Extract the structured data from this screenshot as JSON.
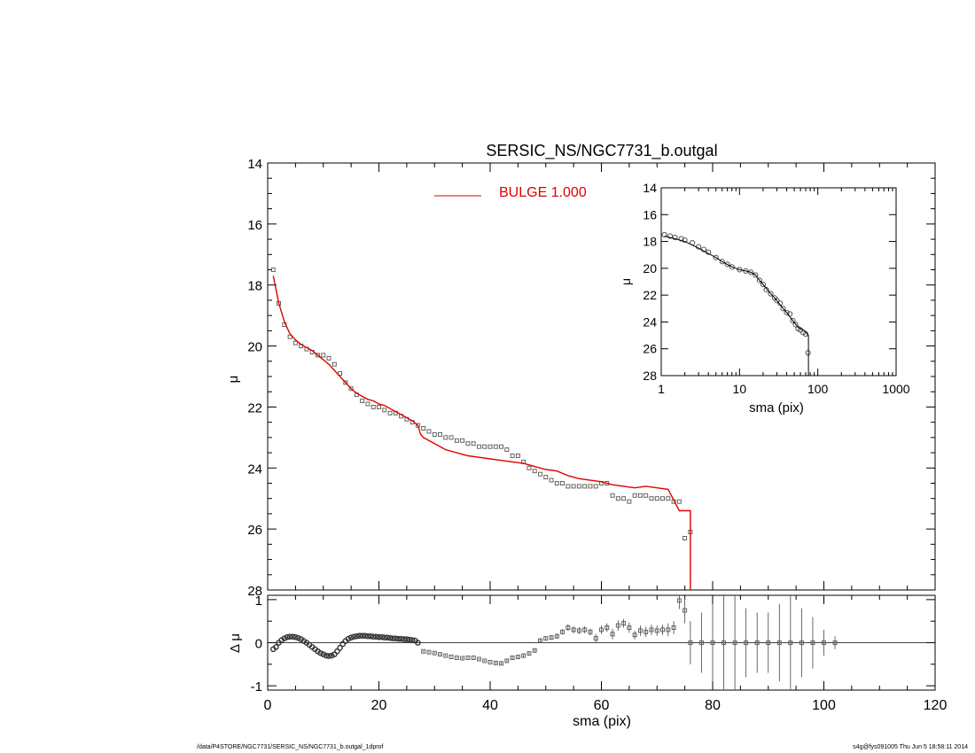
{
  "footer": {
    "left": "/data/P4STORE/NGC7731/SERSIC_NS/NGC7731_b.outgal_1dprof",
    "right": "s4g@fys091005  Thu Jun  5 18:58:11 2014"
  },
  "chart_data": [
    {
      "panel": "main",
      "type": "scatter",
      "title": "SERSIC_NS/NGC7731_b.outgal",
      "xlabel": "",
      "ylabel": "μ",
      "xlim": [
        0,
        120
      ],
      "ylim": [
        28,
        14
      ],
      "x_ticks": [],
      "y_ticks": [
        "14",
        "16",
        "18",
        "20",
        "22",
        "24",
        "26",
        "28"
      ],
      "legend": {
        "placement": "top-center",
        "entries": [
          {
            "label": "BULGE  1.000",
            "color": "#e00000"
          }
        ]
      },
      "series": [
        {
          "style": "squares",
          "color": "#555555",
          "x": [
            1,
            2,
            3,
            4,
            5,
            6,
            7,
            8,
            9,
            10,
            11,
            12,
            13,
            14,
            15,
            16,
            17,
            18,
            19,
            20,
            21,
            22,
            23,
            24,
            25,
            26,
            27,
            28,
            29,
            30,
            31,
            32,
            33,
            34,
            35,
            36,
            37,
            38,
            39,
            40,
            41,
            42,
            43,
            44,
            45,
            46,
            47,
            48,
            49,
            50,
            51,
            52,
            53,
            54,
            55,
            56,
            57,
            58,
            59,
            60,
            61,
            62,
            63,
            64,
            65,
            66,
            67,
            68,
            69,
            70,
            71,
            72,
            73,
            74,
            75,
            76
          ],
          "y": [
            17.5,
            18.6,
            19.3,
            19.7,
            19.9,
            20.0,
            20.1,
            20.2,
            20.3,
            20.3,
            20.4,
            20.6,
            20.9,
            21.2,
            21.4,
            21.6,
            21.8,
            21.9,
            22.0,
            22.0,
            22.1,
            22.2,
            22.2,
            22.3,
            22.4,
            22.5,
            22.6,
            22.7,
            22.8,
            22.9,
            22.9,
            23.0,
            23.0,
            23.1,
            23.1,
            23.2,
            23.2,
            23.3,
            23.3,
            23.3,
            23.3,
            23.3,
            23.4,
            23.6,
            23.6,
            23.8,
            24.0,
            24.1,
            24.2,
            24.3,
            24.4,
            24.5,
            24.5,
            24.6,
            24.6,
            24.6,
            24.6,
            24.6,
            24.6,
            24.5,
            24.5,
            24.9,
            25.0,
            25.0,
            25.1,
            24.9,
            24.9,
            24.9,
            25.0,
            25.0,
            25.0,
            25.0,
            25.1,
            25.1,
            26.3,
            26.1
          ]
        },
        {
          "name": "BULGE  1.000",
          "style": "line",
          "color": "#e00000",
          "x": [
            1.0,
            2.0,
            3.0,
            4.0,
            5.0,
            6.0,
            7.0,
            8.0,
            9.0,
            10.0,
            11.0,
            12.0,
            13.0,
            14.0,
            15.0,
            16.0,
            17.0,
            18.0,
            19.0,
            20.0,
            21.0,
            22.0,
            23.0,
            24.0,
            25.0,
            26.0,
            27.0,
            27.5,
            28.0,
            30.0,
            32.0,
            34.0,
            36.0,
            38.0,
            40.0,
            42.0,
            44.0,
            46.0,
            48.0,
            50.0,
            52.0,
            54.0,
            56.0,
            58.0,
            60.0,
            62.0,
            64.0,
            66.0,
            68.0,
            70.0,
            72.0,
            74.0,
            75.0,
            76.0,
            76.0
          ],
          "y": [
            17.7,
            18.6,
            19.2,
            19.6,
            19.8,
            19.95,
            20.05,
            20.15,
            20.3,
            20.45,
            20.6,
            20.8,
            21.0,
            21.2,
            21.4,
            21.55,
            21.65,
            21.75,
            21.8,
            21.9,
            21.95,
            22.05,
            22.15,
            22.25,
            22.35,
            22.45,
            22.6,
            22.9,
            23.0,
            23.2,
            23.4,
            23.5,
            23.6,
            23.65,
            23.7,
            23.75,
            23.8,
            23.85,
            23.95,
            24.05,
            24.1,
            24.25,
            24.35,
            24.4,
            24.45,
            24.55,
            24.6,
            24.65,
            24.6,
            24.65,
            24.7,
            25.4,
            25.4,
            25.4,
            28.0
          ]
        }
      ]
    },
    {
      "panel": "inset",
      "type": "scatter",
      "title": "",
      "xlabel": "sma (pix)",
      "ylabel": "μ",
      "xscale": "log",
      "xlim": [
        1,
        1000
      ],
      "ylim": [
        28,
        14
      ],
      "x_ticks": [
        "1",
        "10",
        "100",
        "1000"
      ],
      "y_ticks": [
        "14",
        "16",
        "18",
        "20",
        "22",
        "24",
        "26",
        "28"
      ],
      "series": [
        {
          "style": "circles",
          "color": "#555555",
          "x": [
            1.1,
            1.3,
            1.5,
            1.8,
            2,
            2.5,
            3,
            3.5,
            4,
            5,
            6,
            7,
            8,
            10,
            12,
            14,
            16,
            18,
            20,
            22,
            25,
            28,
            30,
            33,
            36,
            40,
            44,
            48,
            52,
            56,
            60,
            65,
            70,
            75
          ],
          "y": [
            17.5,
            17.6,
            17.7,
            17.8,
            17.9,
            18.1,
            18.4,
            18.6,
            18.8,
            19.2,
            19.5,
            19.7,
            19.9,
            20.1,
            20.2,
            20.3,
            20.5,
            20.9,
            21.2,
            21.6,
            21.9,
            22.2,
            22.4,
            22.6,
            23.0,
            23.3,
            23.4,
            23.9,
            24.2,
            24.5,
            24.6,
            24.8,
            24.9,
            26.3
          ]
        },
        {
          "style": "line",
          "color": "#000000",
          "x": [
            1.1,
            1.5,
            2,
            3,
            4,
            5,
            6,
            8,
            10,
            12,
            14,
            16,
            18,
            20,
            25,
            30,
            36,
            40,
            48,
            56,
            65,
            70,
            75,
            76,
            76
          ],
          "y": [
            17.6,
            17.8,
            18.0,
            18.5,
            18.9,
            19.2,
            19.5,
            19.9,
            20.1,
            20.2,
            20.3,
            20.5,
            20.9,
            21.2,
            21.9,
            22.4,
            23.0,
            23.3,
            23.9,
            24.4,
            24.6,
            24.7,
            25.0,
            25.0,
            28.0
          ]
        }
      ]
    },
    {
      "panel": "residual",
      "type": "scatter",
      "title": "",
      "xlabel": "sma (pix)",
      "ylabel": "Δ μ",
      "xlim": [
        0,
        120
      ],
      "ylim": [
        -1.1,
        1.1
      ],
      "x_ticks": [
        "0",
        "20",
        "40",
        "60",
        "80",
        "100",
        "120"
      ],
      "y_ticks": [
        "1",
        "0",
        "-1"
      ],
      "series": [
        {
          "style": "circles",
          "color": "#333333",
          "x": [
            1.0,
            1.5,
            2.0,
            2.5,
            3.0,
            3.5,
            4.0,
            4.5,
            5.0,
            5.5,
            6.0,
            6.5,
            7.0,
            7.5,
            8.0,
            8.5,
            9.0,
            9.5,
            10.0,
            10.5,
            11.0,
            11.5,
            12.0,
            12.5,
            13.0,
            13.5,
            14.0,
            14.5,
            15.0,
            15.5,
            16.0,
            16.5,
            17.0,
            17.5,
            18.0,
            18.5,
            19.0,
            19.5,
            20.0,
            20.5,
            21.0,
            21.5,
            22.0,
            22.5,
            23.0,
            23.5,
            24.0,
            24.5,
            25.0,
            25.5,
            26.0,
            26.5,
            27.0
          ],
          "y": [
            -0.15,
            -0.1,
            0.0,
            0.06,
            0.1,
            0.13,
            0.14,
            0.14,
            0.13,
            0.11,
            0.08,
            0.04,
            0.0,
            -0.05,
            -0.1,
            -0.15,
            -0.2,
            -0.24,
            -0.27,
            -0.3,
            -0.31,
            -0.3,
            -0.27,
            -0.2,
            -0.12,
            -0.03,
            0.04,
            0.09,
            0.12,
            0.14,
            0.15,
            0.16,
            0.16,
            0.16,
            0.15,
            0.15,
            0.14,
            0.14,
            0.13,
            0.13,
            0.12,
            0.12,
            0.11,
            0.1,
            0.1,
            0.09,
            0.09,
            0.08,
            0.08,
            0.07,
            0.06,
            0.05,
            0.0
          ]
        },
        {
          "style": "squares-with-errors",
          "color": "#555555",
          "x": [
            28,
            29,
            30,
            31,
            32,
            33,
            34,
            35,
            36,
            37,
            38,
            39,
            40,
            41,
            42,
            43,
            44,
            45,
            46,
            47,
            48,
            49,
            50,
            51,
            52,
            53,
            54,
            55,
            56,
            57,
            58,
            59,
            60,
            61,
            62,
            63,
            64,
            65,
            66,
            67,
            68,
            69,
            70,
            71,
            72,
            73,
            74,
            75,
            76,
            78,
            80,
            82,
            84,
            86,
            88,
            90,
            92,
            94,
            96,
            98,
            100,
            102
          ],
          "y": [
            -0.2,
            -0.22,
            -0.24,
            -0.27,
            -0.3,
            -0.33,
            -0.35,
            -0.36,
            -0.35,
            -0.35,
            -0.38,
            -0.42,
            -0.45,
            -0.47,
            -0.48,
            -0.42,
            -0.35,
            -0.33,
            -0.3,
            -0.25,
            -0.18,
            0.05,
            0.1,
            0.12,
            0.15,
            0.25,
            0.35,
            0.3,
            0.28,
            0.3,
            0.25,
            0.1,
            0.3,
            0.35,
            0.2,
            0.4,
            0.45,
            0.35,
            0.18,
            0.28,
            0.25,
            0.3,
            0.28,
            0.3,
            0.3,
            0.35,
            0.98,
            0.75,
            0.0,
            0.0,
            0.0,
            0.0,
            0.0,
            0.0,
            0.0,
            0.0,
            0.0,
            0.0,
            0.0,
            0.0,
            0.0,
            0.0
          ],
          "err": [
            0.02,
            0.02,
            0.02,
            0.02,
            0.02,
            0.02,
            0.02,
            0.02,
            0.02,
            0.02,
            0.02,
            0.02,
            0.02,
            0.03,
            0.03,
            0.03,
            0.03,
            0.04,
            0.04,
            0.04,
            0.05,
            0.05,
            0.05,
            0.05,
            0.06,
            0.06,
            0.08,
            0.08,
            0.08,
            0.08,
            0.08,
            0.1,
            0.1,
            0.1,
            0.12,
            0.12,
            0.1,
            0.12,
            0.1,
            0.12,
            0.12,
            0.12,
            0.12,
            0.12,
            0.15,
            0.15,
            0.2,
            0.3,
            0.5,
            0.7,
            0.9,
            1.1,
            1.1,
            0.8,
            0.7,
            0.7,
            0.9,
            1.1,
            0.8,
            0.6,
            0.3,
            0.15
          ]
        }
      ]
    }
  ]
}
